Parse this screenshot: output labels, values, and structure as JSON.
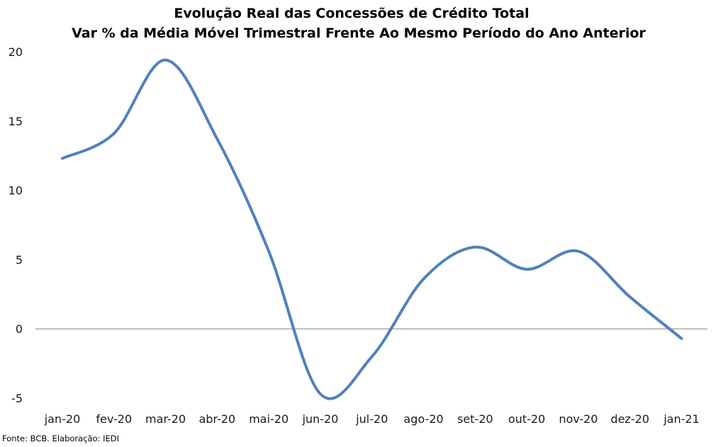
{
  "chart_data": {
    "type": "line",
    "title": "Evolução Real das Concessões de Crédito Total",
    "subtitle": "Var % da Média Móvel Trimestral Frente Ao Mesmo Período do Ano Anterior",
    "categories": [
      "jan-20",
      "fev-20",
      "mar-20",
      "abr-20",
      "mai-20",
      "jun-20",
      "jul-20",
      "ago-20",
      "set-20",
      "out-20",
      "nov-20",
      "dez-20",
      "jan-21"
    ],
    "series": [
      {
        "values": [
          12.3,
          14.1,
          19.4,
          13.7,
          5.6,
          -4.7,
          -2.0,
          3.6,
          5.9,
          4.3,
          5.6,
          2.3,
          -0.7
        ]
      }
    ],
    "ylim": [
      -5,
      20
    ],
    "yticks": [
      -5,
      0,
      5,
      10,
      15,
      20
    ],
    "grid": false,
    "legend": "none",
    "zero_line": true,
    "line_color": "#4f81bd",
    "axis_color": "#808080",
    "source": "Fonte: BCB. Elaboração: IEDI"
  }
}
